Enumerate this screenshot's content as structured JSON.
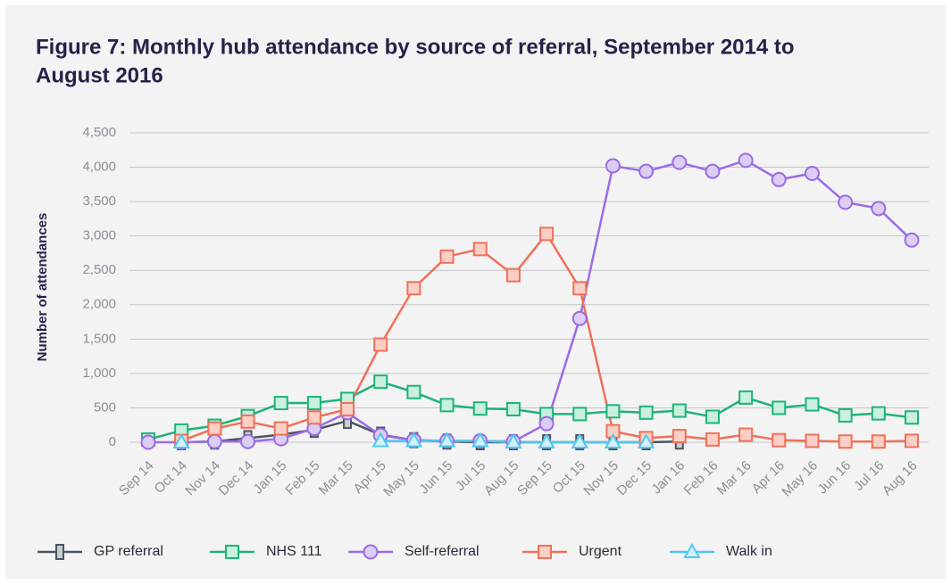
{
  "chart_data": {
    "type": "line",
    "title": "Figure 7: Monthly hub attendance by source of referral, September 2014 to",
    "title_line2": "August 2016",
    "y_label": "Number of attendances",
    "categories": [
      "Sep 14",
      "Oct 14",
      "Nov 14",
      "Dec 14",
      "Jan 15",
      "Feb 15",
      "Mar 15",
      "Apr 15",
      "May 15",
      "Jun 15",
      "Jul 15",
      "Aug 15",
      "Sep 15",
      "Oct 15",
      "Nov 15",
      "Dec 15",
      "Jan 16",
      "Feb 16",
      "Mar 16",
      "Apr 16",
      "May 16",
      "Jun 16",
      "Jul 16",
      "Aug 16"
    ],
    "ylim": [
      0,
      4500
    ],
    "yticks": [
      0,
      500,
      {
        "value": 1000,
        "label": "1,000"
      },
      {
        "value": 1500,
        "label": "1,500"
      },
      {
        "value": 2000,
        "label": "2,000"
      },
      {
        "value": 2500,
        "label": "2,500"
      },
      {
        "value": 3000,
        "label": "3,000"
      },
      {
        "value": 3500,
        "label": "3,500"
      },
      {
        "value": 4000,
        "label": "4,000"
      },
      {
        "value": 4500,
        "label": "4,500"
      }
    ],
    "grid": true,
    "legend": "bottom",
    "series": [
      {
        "name": "GP referral",
        "color": "#4a5560",
        "marker": "bar",
        "values": [
          null,
          0,
          10,
          60,
          110,
          180,
          310,
          110,
          30,
          10,
          0,
          0,
          0,
          0,
          0,
          0,
          10,
          null,
          null,
          null,
          null,
          null,
          null,
          null
        ]
      },
      {
        "name": "NHS 111",
        "color": "#1db37a",
        "marker": "square",
        "values": [
          40,
          170,
          240,
          380,
          570,
          570,
          630,
          880,
          730,
          540,
          490,
          480,
          410,
          410,
          450,
          430,
          460,
          370,
          650,
          500,
          550,
          390,
          420,
          360
        ]
      },
      {
        "name": "Self-referral",
        "color": "#9b6be6",
        "marker": "circle",
        "values": [
          0,
          0,
          10,
          10,
          50,
          200,
          430,
          100,
          30,
          20,
          20,
          10,
          270,
          1800,
          4020,
          3940,
          4070,
          3940,
          4100,
          3820,
          3910,
          3490,
          3400,
          2940
        ]
      },
      {
        "name": "Urgent",
        "color": "#f0705a",
        "marker": "square",
        "values": [
          null,
          20,
          200,
          300,
          200,
          360,
          480,
          1420,
          2240,
          2700,
          2810,
          2430,
          3030,
          2240,
          160,
          60,
          90,
          40,
          110,
          30,
          20,
          10,
          10,
          20
        ]
      },
      {
        "name": "Walk in",
        "color": "#4fc8ef",
        "marker": "triangle",
        "values": [
          null,
          0,
          null,
          null,
          null,
          null,
          null,
          20,
          20,
          20,
          20,
          0,
          0,
          0,
          0,
          0,
          null,
          null,
          null,
          null,
          null,
          null,
          null,
          null
        ]
      }
    ]
  }
}
